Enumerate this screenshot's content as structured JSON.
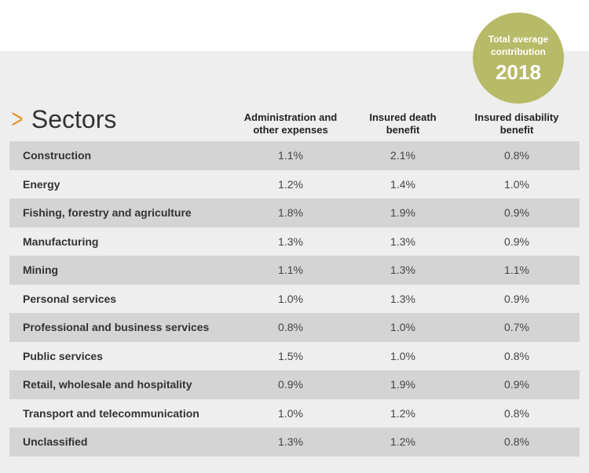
{
  "badge": {
    "line1": "Total average",
    "line2": "contribution",
    "year": "2018"
  },
  "title": "Sectors",
  "chart_data": {
    "type": "table",
    "columns": [
      "Administration and other expenses",
      "Insured death benefit",
      "Insured disability benefit"
    ],
    "column_lines": [
      [
        "Administration and",
        "other expenses"
      ],
      [
        "Insured death",
        "benefit"
      ],
      [
        "Insured disability",
        "benefit"
      ]
    ],
    "rows": [
      {
        "sector": "Construction",
        "values": [
          "1.1%",
          "2.1%",
          "0.8%"
        ]
      },
      {
        "sector": "Energy",
        "values": [
          "1.2%",
          "1.4%",
          "1.0%"
        ]
      },
      {
        "sector": "Fishing, forestry and agriculture",
        "values": [
          "1.8%",
          "1.9%",
          "0.9%"
        ]
      },
      {
        "sector": "Manufacturing",
        "values": [
          "1.3%",
          "1.3%",
          "0.9%"
        ]
      },
      {
        "sector": "Mining",
        "values": [
          "1.1%",
          "1.3%",
          "1.1%"
        ]
      },
      {
        "sector": "Personal services",
        "values": [
          "1.0%",
          "1.3%",
          "0.9%"
        ]
      },
      {
        "sector": "Professional and business services",
        "values": [
          "0.8%",
          "1.0%",
          "0.7%"
        ]
      },
      {
        "sector": "Public services",
        "values": [
          "1.5%",
          "1.0%",
          "0.8%"
        ]
      },
      {
        "sector": "Retail, wholesale and hospitality",
        "values": [
          "0.9%",
          "1.9%",
          "0.9%"
        ]
      },
      {
        "sector": "Transport and telecommunication",
        "values": [
          "1.0%",
          "1.2%",
          "0.8%"
        ]
      },
      {
        "sector": "Unclassified",
        "values": [
          "1.3%",
          "1.2%",
          "0.8%"
        ]
      }
    ]
  },
  "colors": {
    "badge": "#b7ba66",
    "accent": "#e8902a",
    "row_shade": "#d4d4d4",
    "panel": "#eeeeee"
  }
}
